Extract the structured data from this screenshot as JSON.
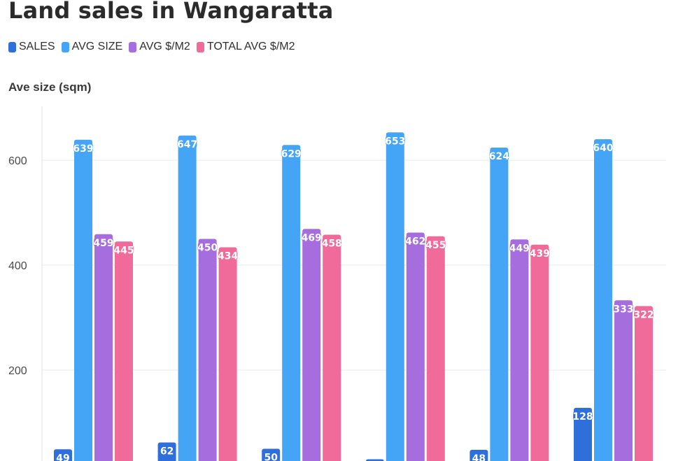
{
  "chart_data": {
    "type": "bar",
    "title": "Land sales in Wangaratta",
    "ylabel": "Ave size (sqm)",
    "ylim": [
      0,
      700
    ],
    "yticks": [
      200,
      400,
      600
    ],
    "grid": true,
    "legend_position": "top-left",
    "categories": [
      "",
      "",
      "",
      "",
      "",
      ""
    ],
    "series": [
      {
        "name": "SALES",
        "color": "#2f6fdc",
        "values": [
          49,
          62,
          50,
          30,
          48,
          128
        ]
      },
      {
        "name": "AVG SIZE",
        "color": "#44a4f5",
        "values": [
          639,
          647,
          629,
          653,
          624,
          640
        ]
      },
      {
        "name": "AVG $/M2",
        "color": "#a66ddf",
        "values": [
          459,
          450,
          469,
          462,
          449,
          333
        ]
      },
      {
        "name": "TOTAL AVG $/M2",
        "color": "#f06a9a",
        "values": [
          445,
          434,
          458,
          455,
          439,
          322
        ]
      }
    ]
  }
}
